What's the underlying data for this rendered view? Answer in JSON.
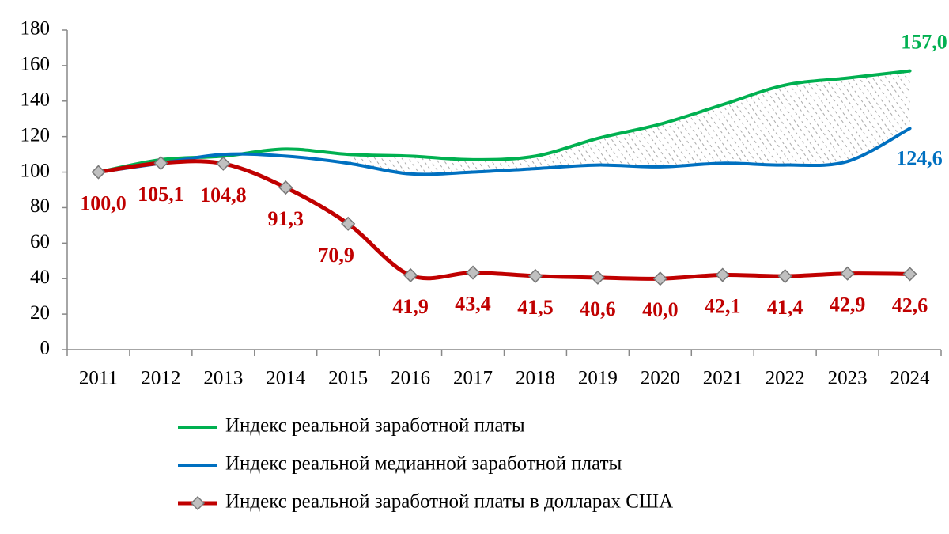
{
  "chart_data": {
    "type": "line",
    "categories": [
      "2011",
      "2012",
      "2013",
      "2014",
      "2015",
      "2016",
      "2017",
      "2018",
      "2019",
      "2020",
      "2021",
      "2022",
      "2023",
      "2024"
    ],
    "series": [
      {
        "name": "Индекс реальной заработной платы",
        "color": "#00b050",
        "values": [
          100,
          107,
          109,
          113,
          110,
          109,
          107,
          109,
          119,
          127,
          138,
          149,
          153,
          157
        ],
        "value_labels": [
          null,
          null,
          null,
          null,
          null,
          null,
          null,
          null,
          null,
          null,
          null,
          null,
          null,
          "157,0"
        ]
      },
      {
        "name": "Индекс реальной медианной заработной платы",
        "color": "#0070c0",
        "values": [
          100,
          105,
          110,
          109,
          105,
          99,
          100,
          102,
          104,
          103,
          105,
          104,
          106,
          124.6
        ],
        "value_labels": [
          null,
          null,
          null,
          null,
          null,
          null,
          null,
          null,
          null,
          null,
          null,
          null,
          null,
          "124,6"
        ]
      },
      {
        "name": "Индекс реальной заработной платы в долларах США",
        "color": "#c00000",
        "marker": "diamond",
        "values": [
          100,
          105.1,
          104.8,
          91.3,
          70.9,
          41.9,
          43.4,
          41.5,
          40.6,
          40,
          42.1,
          41.4,
          42.9,
          42.6
        ],
        "value_labels": [
          "100,0",
          "105,1",
          "104,8",
          "91,3",
          "70,9",
          "41,9",
          "43,4",
          "41,5",
          "40,6",
          "40,0",
          "42,1",
          "41,4",
          "42,9",
          "42,6"
        ]
      }
    ],
    "ylim": [
      0,
      180
    ],
    "yticks": [
      0,
      20,
      40,
      60,
      80,
      100,
      120,
      140,
      160,
      180
    ],
    "grid": false
  }
}
